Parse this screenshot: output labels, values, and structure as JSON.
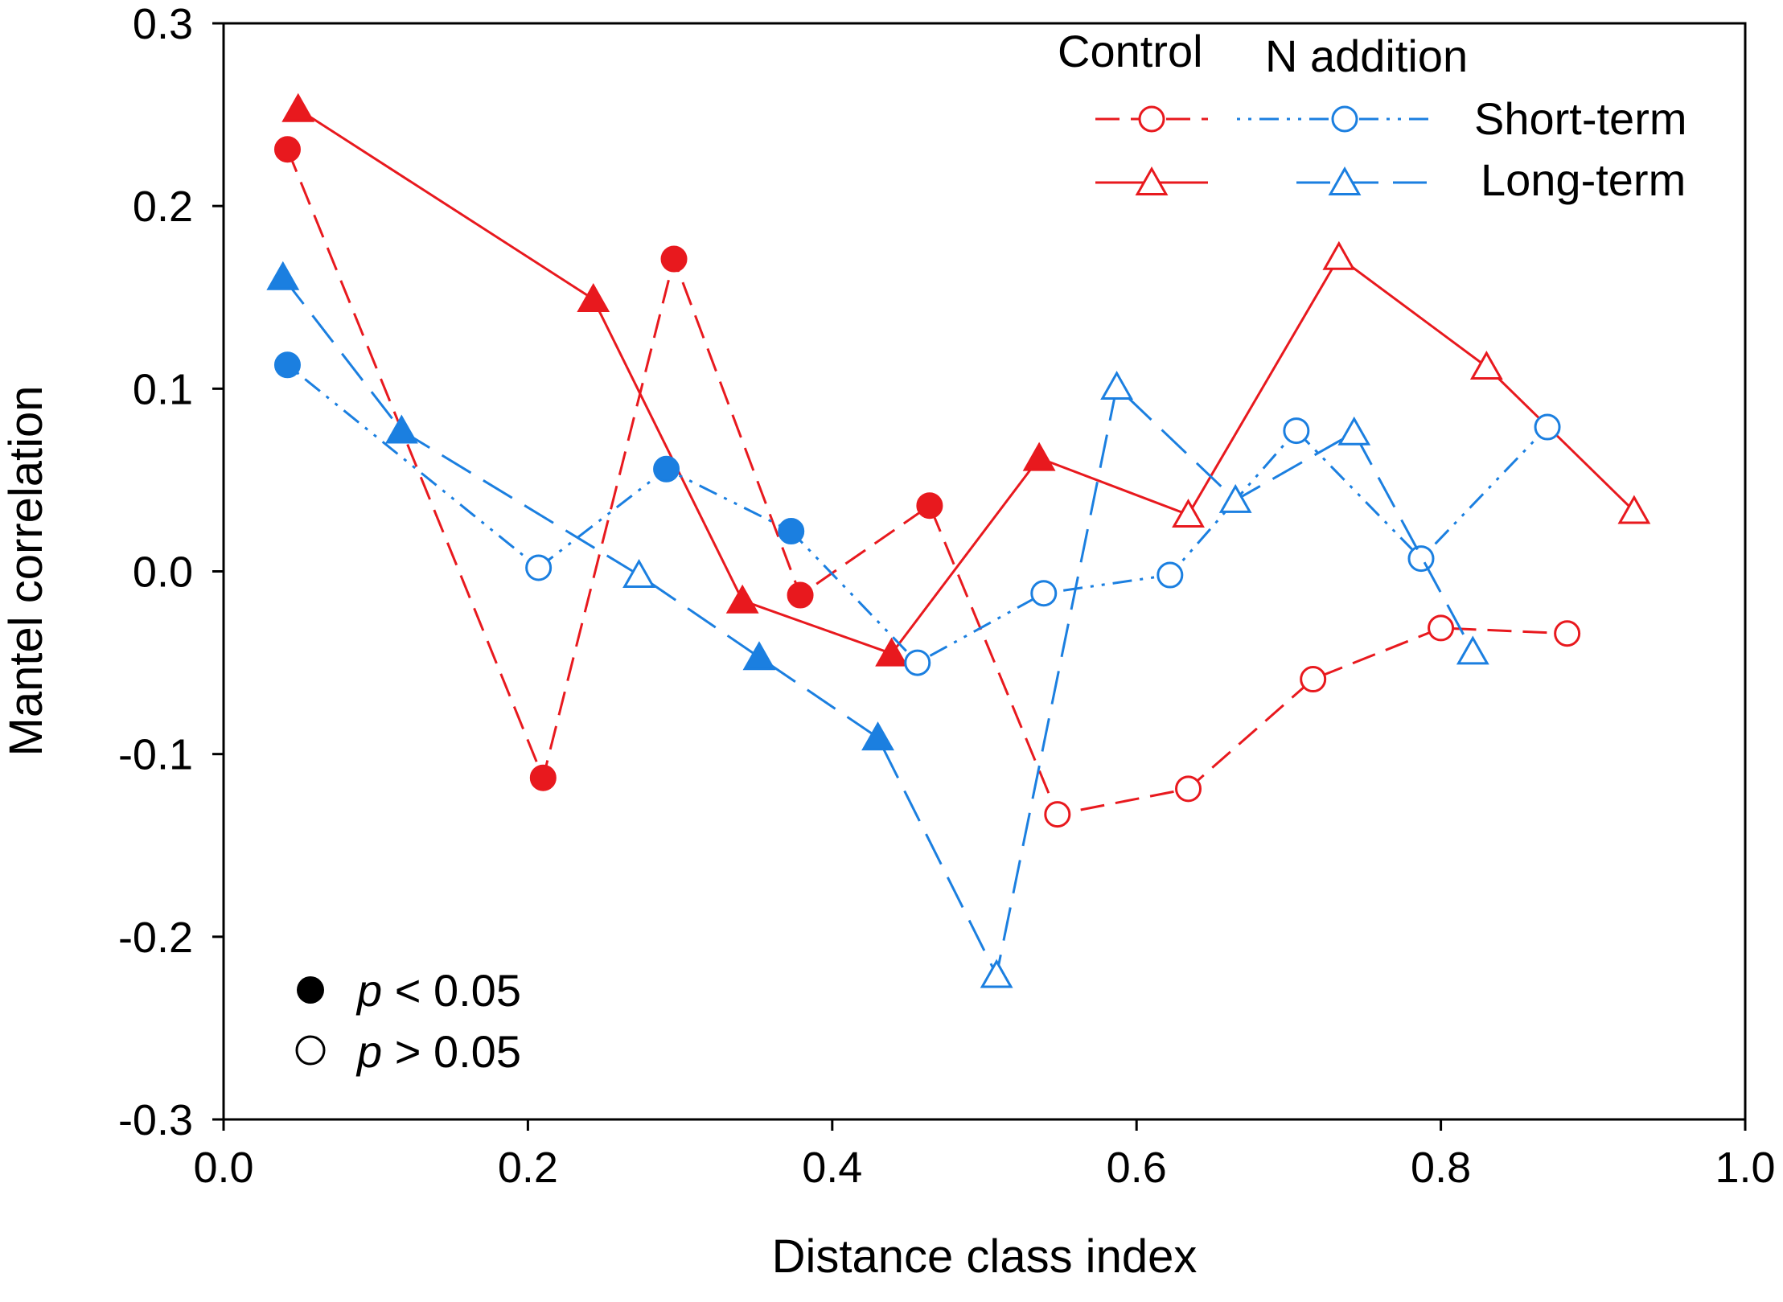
{
  "chart_data": {
    "type": "line",
    "title": "",
    "xlabel": "Distance class index",
    "ylabel": "Mantel correlation",
    "xlim": [
      0.0,
      1.0
    ],
    "ylim": [
      -0.3,
      0.3
    ],
    "xticks": [
      "0.0",
      "0.2",
      "0.4",
      "0.6",
      "0.8",
      "1.0"
    ],
    "yticks": [
      "-0.3",
      "-0.2",
      "-0.1",
      "0.0",
      "0.1",
      "0.2",
      "0.3"
    ],
    "legend": {
      "placement": "top-right",
      "column_headers": [
        "Control",
        "N addition"
      ],
      "row_labels": [
        "Short-term",
        "Long-term"
      ],
      "significance": [
        {
          "filled": true,
          "p_label": "p",
          "rest": " < 0.05"
        },
        {
          "filled": false,
          "p_label": "p",
          "rest": " > 0.05"
        }
      ]
    },
    "colors": {
      "control": "#e8191e",
      "n_addition": "#1b7fe0"
    },
    "series": [
      {
        "name": "Control Short-term",
        "group": "Control",
        "term": "Short-term",
        "color": "#e8191e",
        "marker": "circle",
        "dash": "dashed",
        "points": [
          {
            "x": 0.042,
            "y": 0.231,
            "sig": true
          },
          {
            "x": 0.21,
            "y": -0.113,
            "sig": true
          },
          {
            "x": 0.296,
            "y": 0.171,
            "sig": true
          },
          {
            "x": 0.379,
            "y": -0.013,
            "sig": true
          },
          {
            "x": 0.464,
            "y": 0.036,
            "sig": true
          },
          {
            "x": 0.548,
            "y": -0.133,
            "sig": false
          },
          {
            "x": 0.634,
            "y": -0.119,
            "sig": false
          },
          {
            "x": 0.716,
            "y": -0.059,
            "sig": false
          },
          {
            "x": 0.8,
            "y": -0.031,
            "sig": false
          },
          {
            "x": 0.883,
            "y": -0.034,
            "sig": false
          }
        ]
      },
      {
        "name": "Control Long-term",
        "group": "Control",
        "term": "Long-term",
        "color": "#e8191e",
        "marker": "triangle",
        "dash": "solid",
        "points": [
          {
            "x": 0.049,
            "y": 0.253,
            "sig": true
          },
          {
            "x": 0.243,
            "y": 0.149,
            "sig": true
          },
          {
            "x": 0.341,
            "y": -0.016,
            "sig": true
          },
          {
            "x": 0.439,
            "y": -0.045,
            "sig": true
          },
          {
            "x": 0.536,
            "y": 0.062,
            "sig": true
          },
          {
            "x": 0.634,
            "y": 0.031,
            "sig": false
          },
          {
            "x": 0.733,
            "y": 0.172,
            "sig": false
          },
          {
            "x": 0.83,
            "y": 0.112,
            "sig": false
          },
          {
            "x": 0.927,
            "y": 0.033,
            "sig": false
          }
        ]
      },
      {
        "name": "N addition Short-term",
        "group": "N addition",
        "term": "Short-term",
        "color": "#1b7fe0",
        "marker": "circle",
        "dash": "dashdotdot",
        "points": [
          {
            "x": 0.042,
            "y": 0.113,
            "sig": true
          },
          {
            "x": 0.207,
            "y": 0.002,
            "sig": false
          },
          {
            "x": 0.291,
            "y": 0.056,
            "sig": true
          },
          {
            "x": 0.373,
            "y": 0.022,
            "sig": true
          },
          {
            "x": 0.456,
            "y": -0.05,
            "sig": false
          },
          {
            "x": 0.539,
            "y": -0.012,
            "sig": false
          },
          {
            "x": 0.622,
            "y": -0.002,
            "sig": false
          },
          {
            "x": 0.705,
            "y": 0.077,
            "sig": false
          },
          {
            "x": 0.787,
            "y": 0.007,
            "sig": false
          },
          {
            "x": 0.87,
            "y": 0.079,
            "sig": false
          }
        ]
      },
      {
        "name": "N addition Long-term",
        "group": "N addition",
        "term": "Long-term",
        "color": "#1b7fe0",
        "marker": "triangle",
        "dash": "longdash",
        "points": [
          {
            "x": 0.039,
            "y": 0.161,
            "sig": true
          },
          {
            "x": 0.117,
            "y": 0.077,
            "sig": true
          },
          {
            "x": 0.273,
            "y": -0.002,
            "sig": false
          },
          {
            "x": 0.352,
            "y": -0.047,
            "sig": true
          },
          {
            "x": 0.43,
            "y": -0.091,
            "sig": true
          },
          {
            "x": 0.508,
            "y": -0.221,
            "sig": false
          },
          {
            "x": 0.587,
            "y": 0.101,
            "sig": false
          },
          {
            "x": 0.665,
            "y": 0.039,
            "sig": false
          },
          {
            "x": 0.743,
            "y": 0.076,
            "sig": false
          },
          {
            "x": 0.821,
            "y": -0.044,
            "sig": false
          }
        ]
      }
    ]
  }
}
